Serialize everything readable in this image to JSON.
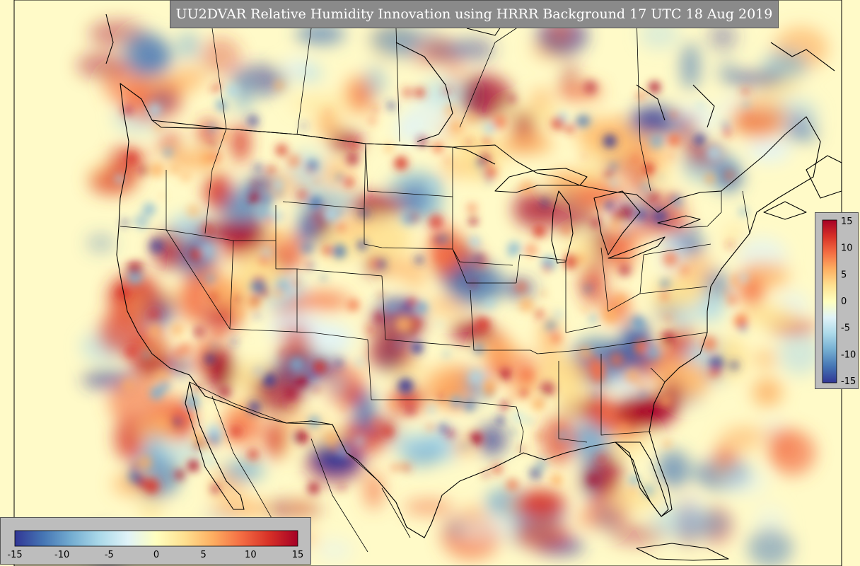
{
  "title": "UU2DVAR Relative Humidity Innovation using HRRR Background 17 UTC 18 Aug 2019",
  "colorbar": {
    "min": -15,
    "max": 15,
    "ticks_right": [
      "15",
      "10",
      "5",
      "0",
      "-5",
      "-10",
      "-15"
    ],
    "ticks_bottom": [
      "-15",
      "-10",
      "-5",
      "0",
      "5",
      "10",
      "15"
    ],
    "colors": [
      "#313695",
      "#4575b4",
      "#74add1",
      "#abd9e9",
      "#e0f3f8",
      "#ffffbf",
      "#fee090",
      "#fdae61",
      "#f46d43",
      "#d73027",
      "#a50026"
    ]
  },
  "map": {
    "background_color": "#fffac8",
    "border_color": "#000000"
  }
}
